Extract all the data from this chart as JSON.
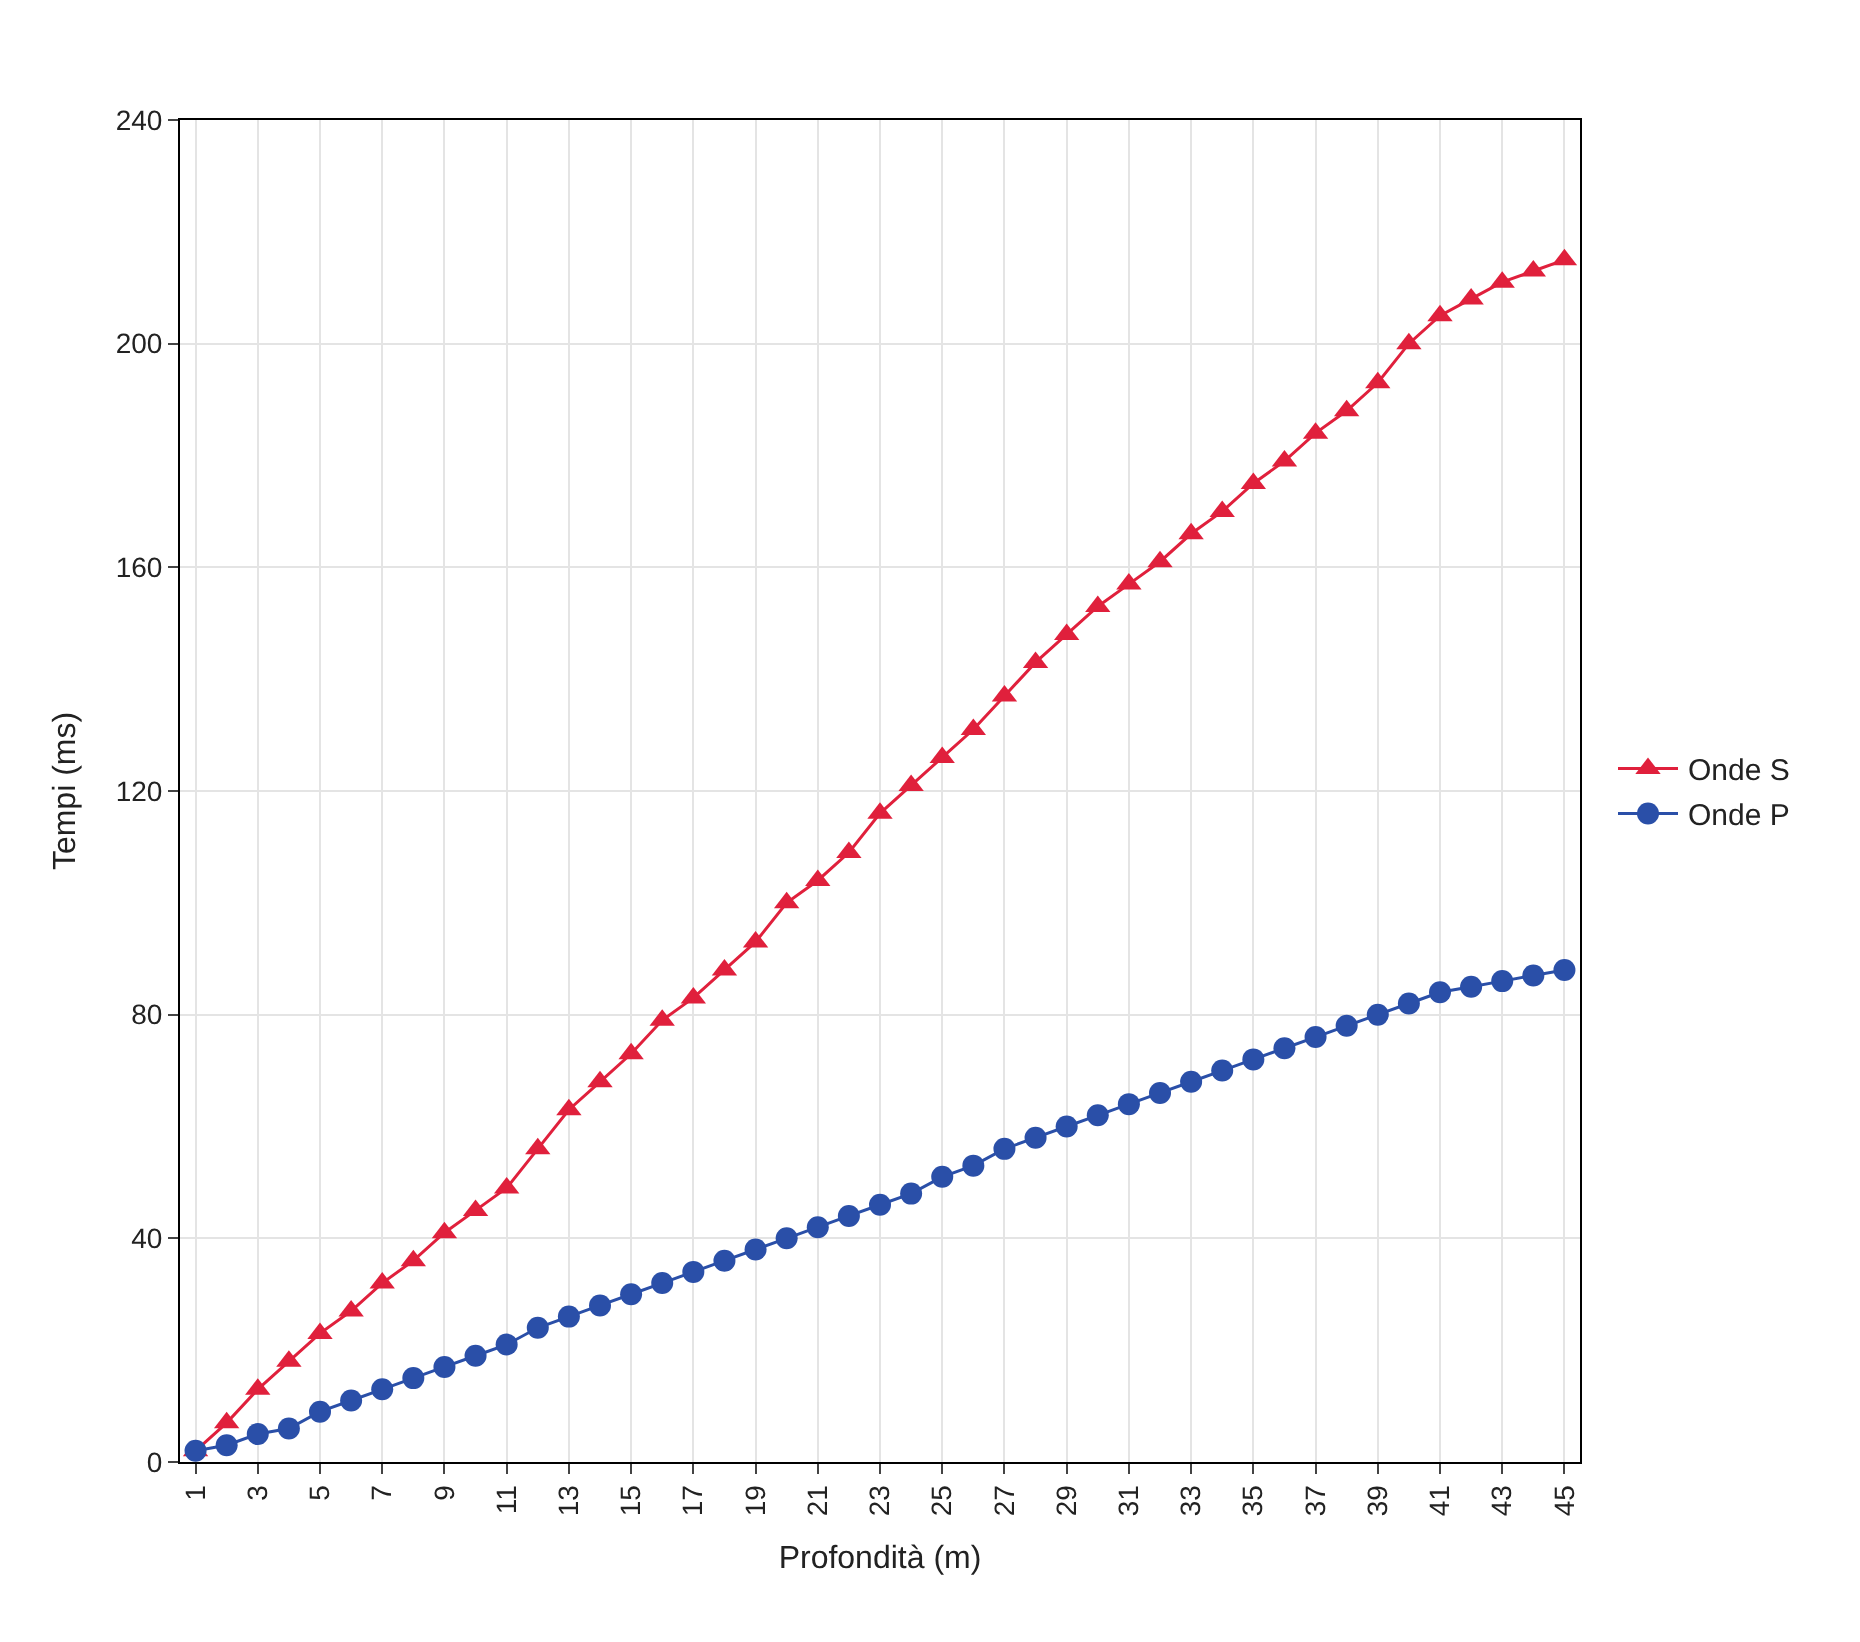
{
  "chart_data": {
    "type": "line",
    "xlabel": "Profondità (m)",
    "ylabel": "Tempi (ms)",
    "categories": [
      "1",
      null,
      "3",
      null,
      "5",
      null,
      "7",
      null,
      "9",
      null,
      "11",
      null,
      "13",
      null,
      "15",
      null,
      "17",
      null,
      "19",
      null,
      "21",
      null,
      "23",
      null,
      "25",
      null,
      "27",
      null,
      "29",
      null,
      "31",
      null,
      "33",
      null,
      "35",
      null,
      "37",
      null,
      "39",
      null,
      "41",
      null,
      "43",
      null,
      "45"
    ],
    "series": [
      {
        "name": "Onde S",
        "color": "#e0203c",
        "marker": "triangle",
        "values": [
          2,
          7,
          13,
          18,
          23,
          27,
          32,
          36,
          41,
          45,
          49,
          56,
          63,
          68,
          73,
          79,
          83,
          88,
          93,
          100,
          104,
          109,
          116,
          121,
          126,
          131,
          137,
          143,
          148,
          153,
          157,
          161,
          166,
          170,
          175,
          179,
          184,
          188,
          193,
          200,
          205,
          208,
          211,
          213,
          215
        ]
      },
      {
        "name": "Onde P",
        "color": "#2a4fa8",
        "marker": "circle",
        "values": [
          2,
          3,
          5,
          6,
          9,
          11,
          13,
          15,
          17,
          19,
          21,
          24,
          26,
          28,
          30,
          32,
          34,
          36,
          38,
          40,
          42,
          44,
          46,
          48,
          51,
          53,
          56,
          58,
          60,
          62,
          64,
          66,
          68,
          70,
          72,
          74,
          76,
          78,
          80,
          82,
          84,
          85,
          86,
          87,
          88
        ]
      }
    ],
    "ylim": [
      0,
      240
    ],
    "yticks": [
      0,
      40,
      80,
      120,
      160,
      200,
      240
    ],
    "grid": true,
    "legend": "right",
    "line_style": "solid"
  }
}
